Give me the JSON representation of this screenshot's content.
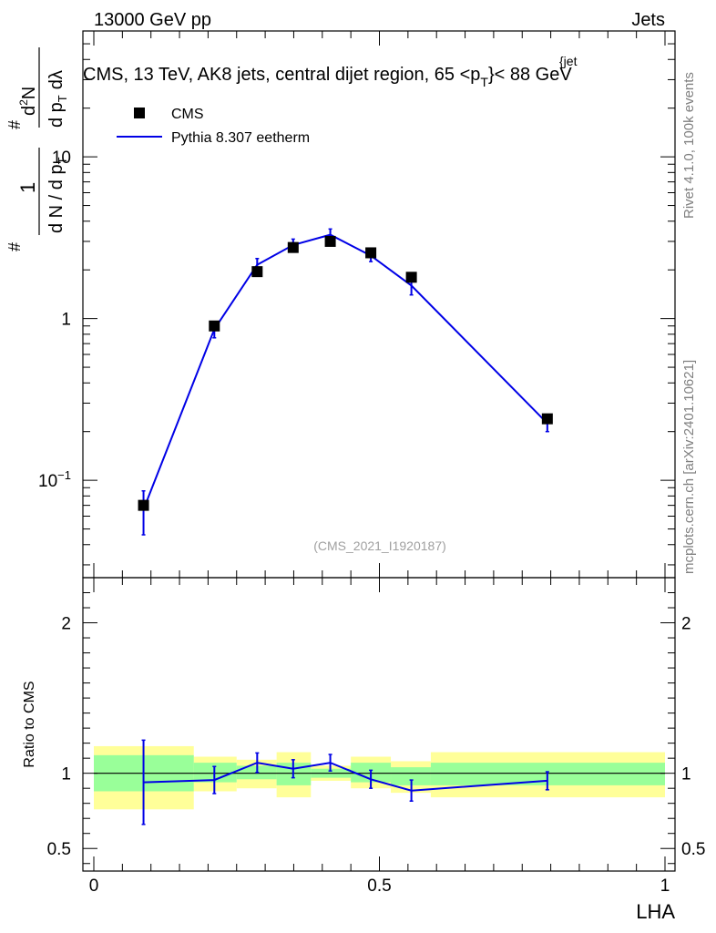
{
  "header": {
    "left": "13000 GeV pp",
    "right": "Jets"
  },
  "title": {
    "main": "CMS, 13 TeV, AK8 jets, central dijet region, 65 <p",
    "sub_T": "T",
    "sup_jet": "{jet",
    "suffix": "}< 88 GeV"
  },
  "side_labels": {
    "rivet": "Rivet 4.1.0,  100k events",
    "mcplots": "mcplots.cern.ch [arXiv:2401.10621]"
  },
  "watermark": "(CMS_2021_I1920187)",
  "y_label": {
    "frac_num": "1",
    "frac_den_a": "d N / d p",
    "frac_den_sub": "T",
    "hash": "#",
    "right_num": "d",
    "right_num_sup": "2",
    "right_num_b": "N",
    "right_den": "d p",
    "right_den_sub": "T",
    "right_den_b": "dλ"
  },
  "legend": {
    "data_label": "CMS",
    "mc_label": "Pythia 8.307 eetherm"
  },
  "ratio_ylabel": "Ratio to CMS",
  "x_axis_label": "LHA",
  "colors": {
    "mc_line": "#0000e6",
    "band_inner": "#99ff99",
    "band_outer": "#ffff99",
    "data_marker": "#000000"
  },
  "chart_data": {
    "type": "line",
    "xlim": [
      0,
      1
    ],
    "x_ticks": [
      "0",
      "0.5",
      "1"
    ],
    "main": {
      "yscale": "log",
      "ylim": [
        0.025,
        60
      ],
      "y_ticks": [
        {
          "value": 0.1,
          "label": "10",
          "sup": "−1"
        },
        {
          "value": 1,
          "label": "1",
          "sup": ""
        },
        {
          "value": 10,
          "label": "10",
          "sup": ""
        }
      ],
      "series": [
        {
          "name": "CMS",
          "kind": "data",
          "x": [
            0.087,
            0.211,
            0.286,
            0.349,
            0.414,
            0.485,
            0.556,
            0.794
          ],
          "y": [
            0.07,
            0.9,
            1.95,
            2.75,
            3.0,
            2.55,
            1.8,
            0.24
          ]
        },
        {
          "name": "Pythia 8.307 eetherm",
          "kind": "mc",
          "x": [
            0.087,
            0.211,
            0.286,
            0.349,
            0.414,
            0.485,
            0.556,
            0.794
          ],
          "y": [
            0.066,
            0.86,
            2.15,
            2.85,
            3.3,
            2.45,
            1.6,
            0.225
          ],
          "err": [
            0.02,
            0.1,
            0.2,
            0.25,
            0.28,
            0.2,
            0.2,
            0.025
          ]
        }
      ]
    },
    "ratio": {
      "ylim": [
        0.35,
        2.3
      ],
      "y_ticks": [
        0.5,
        1,
        2
      ],
      "bins": [
        {
          "lo": 0.0,
          "hi": 0.175,
          "inner": [
            0.88,
            1.12
          ],
          "outer": [
            0.76,
            1.18
          ]
        },
        {
          "lo": 0.175,
          "hi": 0.25,
          "inner": [
            0.94,
            1.07
          ],
          "outer": [
            0.88,
            1.11
          ]
        },
        {
          "lo": 0.25,
          "hi": 0.32,
          "inner": [
            0.96,
            1.05
          ],
          "outer": [
            0.9,
            1.09
          ]
        },
        {
          "lo": 0.32,
          "hi": 0.38,
          "inner": [
            0.92,
            1.07
          ],
          "outer": [
            0.84,
            1.14
          ]
        },
        {
          "lo": 0.38,
          "hi": 0.45,
          "inner": [
            0.97,
            1.03
          ],
          "outer": [
            0.95,
            1.05
          ]
        },
        {
          "lo": 0.45,
          "hi": 0.52,
          "inner": [
            0.94,
            1.07
          ],
          "outer": [
            0.9,
            1.11
          ]
        },
        {
          "lo": 0.52,
          "hi": 0.59,
          "inner": [
            0.92,
            1.04
          ],
          "outer": [
            0.87,
            1.08
          ]
        },
        {
          "lo": 0.59,
          "hi": 1.0,
          "inner": [
            0.92,
            1.07
          ],
          "outer": [
            0.84,
            1.14
          ]
        }
      ],
      "mc_ratio": {
        "x": [
          0.087,
          0.211,
          0.286,
          0.349,
          0.414,
          0.485,
          0.556,
          0.794
        ],
        "y": [
          0.94,
          0.955,
          1.07,
          1.03,
          1.07,
          0.96,
          0.885,
          0.95
        ],
        "err": [
          0.28,
          0.09,
          0.065,
          0.06,
          0.055,
          0.06,
          0.07,
          0.06
        ]
      }
    }
  }
}
